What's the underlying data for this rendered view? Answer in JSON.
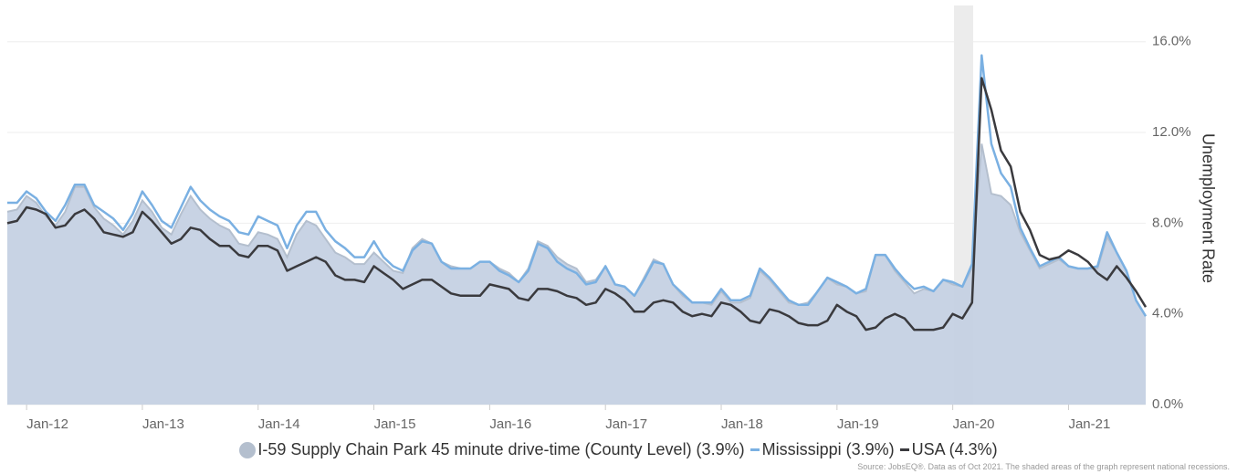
{
  "chart_data": {
    "type": "line",
    "y_label": "Unemployment Rate",
    "source": "Source: JobsEQ®. Data as of Oct 2021. The shaded areas of the graph represent national recessions.",
    "categories": [
      null,
      null,
      "Jan-12",
      null,
      null,
      null,
      null,
      null,
      null,
      null,
      null,
      null,
      null,
      null,
      "Jan-13",
      null,
      null,
      null,
      null,
      null,
      null,
      null,
      null,
      null,
      null,
      null,
      "Jan-14",
      null,
      null,
      null,
      null,
      null,
      null,
      null,
      null,
      null,
      null,
      null,
      "Jan-15",
      null,
      null,
      null,
      null,
      null,
      null,
      null,
      null,
      null,
      null,
      null,
      "Jan-16",
      null,
      null,
      null,
      null,
      null,
      null,
      null,
      null,
      null,
      null,
      null,
      "Jan-17",
      null,
      null,
      null,
      null,
      null,
      null,
      null,
      null,
      null,
      null,
      null,
      "Jan-18",
      null,
      null,
      null,
      null,
      null,
      null,
      null,
      null,
      null,
      null,
      null,
      "Jan-19",
      null,
      null,
      null,
      null,
      null,
      null,
      null,
      null,
      null,
      null,
      null,
      "Jan-20",
      null,
      null,
      null,
      null,
      null,
      null,
      null,
      null,
      null,
      null,
      null,
      "Jan-21",
      null,
      null,
      null,
      null,
      null,
      null,
      null,
      null
    ],
    "series": [
      {
        "name": "I-59 Supply Chain Park 45 minute drive-time (County Level) (3.9%)",
        "style": "area",
        "color": "#c5d1e3",
        "stroke": "#b4bfce",
        "values": [
          8.5,
          8.6,
          9.2,
          8.9,
          8.3,
          7.9,
          8.5,
          9.6,
          9.6,
          8.7,
          8.2,
          7.9,
          7.5,
          8.1,
          9.0,
          8.5,
          7.8,
          7.5,
          8.4,
          9.2,
          8.6,
          8.2,
          7.9,
          7.7,
          7.1,
          7.0,
          7.6,
          7.5,
          7.3,
          6.5,
          7.5,
          8.1,
          7.9,
          7.3,
          6.7,
          6.5,
          6.2,
          6.2,
          6.7,
          6.3,
          5.9,
          5.8,
          6.9,
          7.3,
          7.1,
          6.3,
          6.1,
          6.0,
          6.0,
          6.3,
          6.3,
          6.0,
          5.8,
          5.4,
          6.0,
          7.2,
          7.0,
          6.5,
          6.2,
          6.0,
          5.4,
          5.5,
          6.1,
          5.3,
          5.2,
          4.8,
          5.6,
          6.4,
          6.2,
          5.3,
          4.8,
          4.5,
          4.5,
          4.4,
          5.0,
          4.5,
          4.5,
          4.7,
          5.9,
          5.5,
          5.0,
          4.5,
          4.4,
          4.5,
          5.0,
          5.6,
          5.3,
          5.2,
          4.9,
          5.0,
          6.6,
          6.6,
          5.9,
          5.4,
          4.9,
          5.1,
          5.0,
          5.5,
          5.3,
          5.2,
          6.0,
          11.5,
          9.3,
          9.2,
          8.8,
          7.6,
          6.8,
          6.0,
          6.2,
          6.4,
          6.1,
          6.0,
          6.0,
          6.0,
          7.4,
          6.7,
          5.9,
          4.6,
          3.9
        ]
      },
      {
        "name": "Mississippi (3.9%)",
        "style": "line",
        "color": "#7ab0e2",
        "values": [
          8.9,
          8.9,
          9.4,
          9.1,
          8.5,
          8.1,
          8.8,
          9.7,
          9.7,
          8.8,
          8.5,
          8.2,
          7.7,
          8.4,
          9.4,
          8.8,
          8.1,
          7.8,
          8.7,
          9.6,
          9.0,
          8.6,
          8.3,
          8.1,
          7.6,
          7.5,
          8.3,
          8.1,
          7.9,
          6.9,
          7.9,
          8.5,
          8.5,
          7.7,
          7.2,
          6.9,
          6.5,
          6.5,
          7.2,
          6.5,
          6.1,
          5.9,
          6.8,
          7.2,
          7.1,
          6.3,
          6.0,
          6.0,
          6.0,
          6.3,
          6.3,
          5.9,
          5.7,
          5.4,
          5.9,
          7.1,
          6.9,
          6.3,
          6.0,
          5.8,
          5.3,
          5.4,
          6.1,
          5.3,
          5.2,
          4.8,
          5.5,
          6.3,
          6.2,
          5.3,
          4.9,
          4.5,
          4.5,
          4.5,
          5.1,
          4.6,
          4.6,
          4.8,
          6.0,
          5.6,
          5.1,
          4.6,
          4.4,
          4.4,
          5.0,
          5.6,
          5.4,
          5.2,
          4.9,
          5.1,
          6.6,
          6.6,
          6.0,
          5.5,
          5.1,
          5.2,
          5.0,
          5.5,
          5.4,
          5.2,
          6.2,
          15.4,
          11.5,
          10.2,
          9.6,
          7.8,
          6.9,
          6.1,
          6.3,
          6.5,
          6.1,
          6.0,
          6.0,
          6.1,
          7.6,
          6.7,
          5.9,
          4.6,
          3.9
        ]
      },
      {
        "name": "USA (4.3%)",
        "style": "line",
        "color": "#3a3a3e",
        "values": [
          8.0,
          8.1,
          8.7,
          8.6,
          8.4,
          7.8,
          7.9,
          8.4,
          8.6,
          8.2,
          7.6,
          7.5,
          7.4,
          7.6,
          8.5,
          8.1,
          7.6,
          7.1,
          7.3,
          7.8,
          7.7,
          7.3,
          7.0,
          7.0,
          6.6,
          6.5,
          7.0,
          7.0,
          6.8,
          5.9,
          6.1,
          6.3,
          6.5,
          6.3,
          5.7,
          5.5,
          5.5,
          5.4,
          6.1,
          5.8,
          5.5,
          5.1,
          5.3,
          5.5,
          5.5,
          5.2,
          4.9,
          4.8,
          4.8,
          4.8,
          5.3,
          5.2,
          5.1,
          4.7,
          4.6,
          5.1,
          5.1,
          5.0,
          4.8,
          4.7,
          4.4,
          4.5,
          5.1,
          4.9,
          4.6,
          4.1,
          4.1,
          4.5,
          4.6,
          4.5,
          4.1,
          3.9,
          4.0,
          3.9,
          4.5,
          4.4,
          4.1,
          3.7,
          3.6,
          4.2,
          4.1,
          3.9,
          3.6,
          3.5,
          3.5,
          3.7,
          4.4,
          4.1,
          3.9,
          3.3,
          3.4,
          3.8,
          4.0,
          3.8,
          3.3,
          3.3,
          3.3,
          3.4,
          4.0,
          3.8,
          4.5,
          14.4,
          13.0,
          11.2,
          10.5,
          8.5,
          7.7,
          6.6,
          6.4,
          6.5,
          6.8,
          6.6,
          6.3,
          5.8,
          5.5,
          6.1,
          5.6,
          5.0,
          4.3
        ]
      }
    ],
    "ylim": [
      0,
      17.6
    ],
    "yticks": [
      {
        "value": 0,
        "label": "0.0%"
      },
      {
        "value": 4,
        "label": "4.0%"
      },
      {
        "value": 8,
        "label": "8.0%"
      },
      {
        "value": 12,
        "label": "12.0%"
      },
      {
        "value": 16,
        "label": "16.0%"
      }
    ],
    "grid": true
  }
}
